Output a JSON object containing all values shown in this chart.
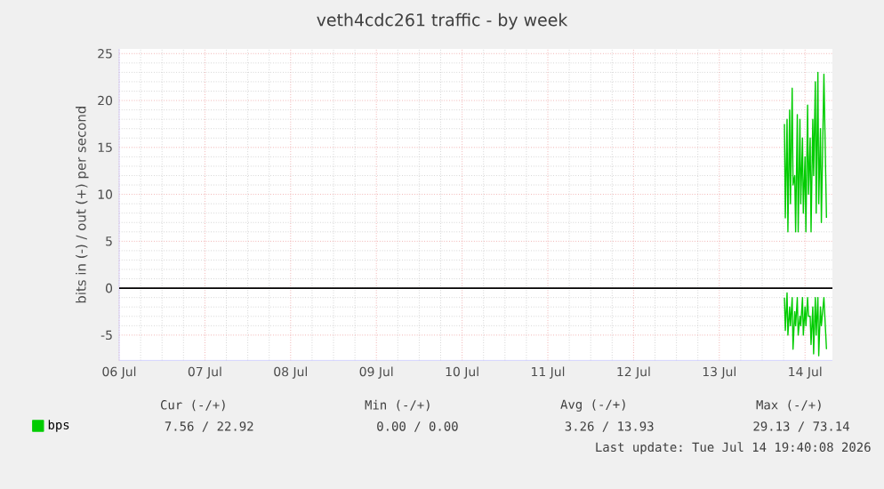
{
  "chart_data": {
    "type": "line",
    "title": "veth4cdc261 traffic - by week",
    "ylabel": "bits in (-) / out (+) per second",
    "xlim": [
      "2026-07-06T12:00",
      "2026-07-14T19:40"
    ],
    "ylim": [
      -7.7,
      25.5
    ],
    "xticks": [
      {
        "value": "2026-07-06T12:00",
        "label": "06 Jul"
      },
      {
        "value": "2026-07-07T12:00",
        "label": "07 Jul"
      },
      {
        "value": "2026-07-08T12:00",
        "label": "08 Jul"
      },
      {
        "value": "2026-07-09T12:00",
        "label": "09 Jul"
      },
      {
        "value": "2026-07-10T12:00",
        "label": "10 Jul"
      },
      {
        "value": "2026-07-11T12:00",
        "label": "11 Jul"
      },
      {
        "value": "2026-07-12T12:00",
        "label": "12 Jul"
      },
      {
        "value": "2026-07-13T12:00",
        "label": "13 Jul"
      },
      {
        "value": "2026-07-14T12:00",
        "label": "14 Jul"
      }
    ],
    "yticks": [
      -5,
      0,
      5,
      10,
      15,
      20,
      25
    ],
    "grid": true,
    "legend": "bottom left",
    "marker": "none",
    "line_style": "solid",
    "ref_lines": [
      {
        "axis": "y",
        "value": 0,
        "color": "#000000"
      }
    ],
    "series": [
      {
        "name": "bps",
        "color": "#00cc00",
        "x": [
          "2026-07-14T06:14",
          "2026-07-14T06:29",
          "2026-07-14T06:58",
          "2026-07-14T07:12",
          "2026-07-14T07:41",
          "2026-07-14T07:55",
          "2026-07-14T08:24",
          "2026-07-14T08:38",
          "2026-07-14T09:07",
          "2026-07-14T09:22",
          "2026-07-14T09:50",
          "2026-07-14T10:05",
          "2026-07-14T10:34",
          "2026-07-14T10:48",
          "2026-07-14T11:17",
          "2026-07-14T11:31",
          "2026-07-14T12:00",
          "2026-07-14T12:14",
          "2026-07-14T12:43",
          "2026-07-14T12:58",
          "2026-07-14T13:26",
          "2026-07-14T13:41",
          "2026-07-14T14:10",
          "2026-07-14T14:24",
          "2026-07-14T14:53",
          "2026-07-14T15:07",
          "2026-07-14T15:36",
          "2026-07-14T15:50",
          "2026-07-14T16:19",
          "2026-07-14T16:34",
          "2026-07-14T17:17",
          "2026-07-14T18:00"
        ],
        "values": [
          17.5,
          7.5,
          18,
          6,
          19,
          9,
          21.3,
          11,
          12,
          6,
          18.5,
          6,
          18,
          9,
          16,
          8,
          14,
          6,
          19.5,
          10,
          16,
          6,
          18,
          12,
          22,
          8,
          23,
          9,
          17,
          7,
          22.8,
          7.5
        ]
      },
      {
        "color": "#00cc00",
        "x": [
          "2026-07-14T06:14",
          "2026-07-14T06:29",
          "2026-07-14T06:58",
          "2026-07-14T07:12",
          "2026-07-14T07:41",
          "2026-07-14T07:55",
          "2026-07-14T08:24",
          "2026-07-14T08:38",
          "2026-07-14T09:07",
          "2026-07-14T09:22",
          "2026-07-14T09:50",
          "2026-07-14T10:05",
          "2026-07-14T10:34",
          "2026-07-14T10:48",
          "2026-07-14T11:17",
          "2026-07-14T11:31",
          "2026-07-14T12:00",
          "2026-07-14T12:14",
          "2026-07-14T12:43",
          "2026-07-14T12:58",
          "2026-07-14T13:26",
          "2026-07-14T13:41",
          "2026-07-14T14:10",
          "2026-07-14T14:24",
          "2026-07-14T14:53",
          "2026-07-14T15:07",
          "2026-07-14T15:36",
          "2026-07-14T15:50",
          "2026-07-14T16:19",
          "2026-07-14T16:34",
          "2026-07-14T17:17",
          "2026-07-14T18:00"
        ],
        "values": [
          -1,
          -4.5,
          -0.5,
          -5,
          -2,
          -4,
          -1,
          -6.5,
          -2.5,
          -4,
          -1,
          -5,
          -3,
          -4,
          -1,
          -5,
          -2,
          -4,
          -1,
          -3,
          -3,
          -6,
          -2,
          -7,
          -1,
          -5,
          -1,
          -7.2,
          -2,
          -4,
          -1,
          -6.5
        ]
      }
    ],
    "annotations": [
      "Cur (-/+)",
      "Min (-/+)",
      "Avg (-/+)",
      "Max (-/+)",
      "7.56 / 22.92",
      "0.00 /  0.00",
      "3.26 / 13.93",
      "29.13 / 73.14",
      "Last update: Tue Jul 14 19:40:08 2026"
    ]
  }
}
